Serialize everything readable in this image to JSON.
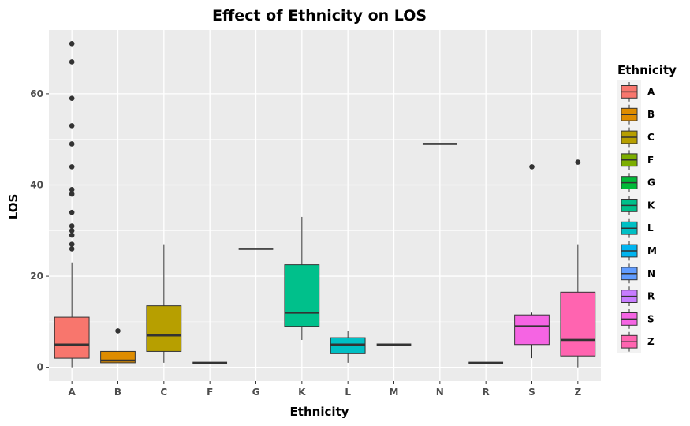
{
  "chart_data": {
    "type": "box",
    "title": "Effect of Ethnicity on LOS",
    "xlabel": "Ethnicity",
    "ylabel": "LOS",
    "ylim": [
      -3,
      74
    ],
    "yticks": [
      0,
      20,
      40,
      60
    ],
    "grid": true,
    "legend": {
      "title": "Ethnicity",
      "position": "right"
    },
    "categories": [
      "A",
      "B",
      "C",
      "F",
      "G",
      "K",
      "L",
      "M",
      "N",
      "R",
      "S",
      "Z"
    ],
    "colors": {
      "A": "#F8766D",
      "B": "#DE8C00",
      "C": "#B79F00",
      "F": "#7CAE00",
      "G": "#00BA38",
      "K": "#00C08B",
      "L": "#00BFC4",
      "M": "#00B4F0",
      "N": "#619CFF",
      "R": "#C77CFF",
      "S": "#F564E3",
      "Z": "#FF64B0"
    },
    "boxes": [
      {
        "category": "A",
        "min": 0,
        "q1": 2,
        "median": 5,
        "q3": 11,
        "max": 23,
        "outliers": [
          26,
          27,
          29,
          30,
          31,
          34,
          38,
          39,
          44,
          49,
          53,
          59,
          67,
          71
        ]
      },
      {
        "category": "B",
        "min": 1,
        "q1": 1,
        "median": 1.5,
        "q3": 3.5,
        "max": 3.5,
        "outliers": [
          8
        ]
      },
      {
        "category": "C",
        "min": 1,
        "q1": 3.5,
        "median": 7,
        "q3": 13.5,
        "max": 27,
        "outliers": []
      },
      {
        "category": "F",
        "min": 1,
        "q1": 1,
        "median": 1,
        "q3": 1,
        "max": 1,
        "outliers": []
      },
      {
        "category": "G",
        "min": 26,
        "q1": 26,
        "median": 26,
        "q3": 26,
        "max": 26,
        "outliers": []
      },
      {
        "category": "K",
        "min": 6,
        "q1": 9,
        "median": 12,
        "q3": 22.5,
        "max": 33,
        "outliers": []
      },
      {
        "category": "L",
        "min": 1,
        "q1": 3,
        "median": 5,
        "q3": 6.5,
        "max": 8,
        "outliers": []
      },
      {
        "category": "M",
        "min": 5,
        "q1": 5,
        "median": 5,
        "q3": 5,
        "max": 5,
        "outliers": []
      },
      {
        "category": "N",
        "min": 49,
        "q1": 49,
        "median": 49,
        "q3": 49,
        "max": 49,
        "outliers": []
      },
      {
        "category": "R",
        "min": 1,
        "q1": 1,
        "median": 1,
        "q3": 1,
        "max": 1,
        "outliers": []
      },
      {
        "category": "S",
        "min": 2,
        "q1": 5,
        "median": 9,
        "q3": 11.5,
        "max": 12,
        "outliers": [
          44
        ]
      },
      {
        "category": "Z",
        "min": 0,
        "q1": 2.5,
        "median": 6,
        "q3": 16.5,
        "max": 27,
        "outliers": [
          45
        ]
      }
    ]
  }
}
